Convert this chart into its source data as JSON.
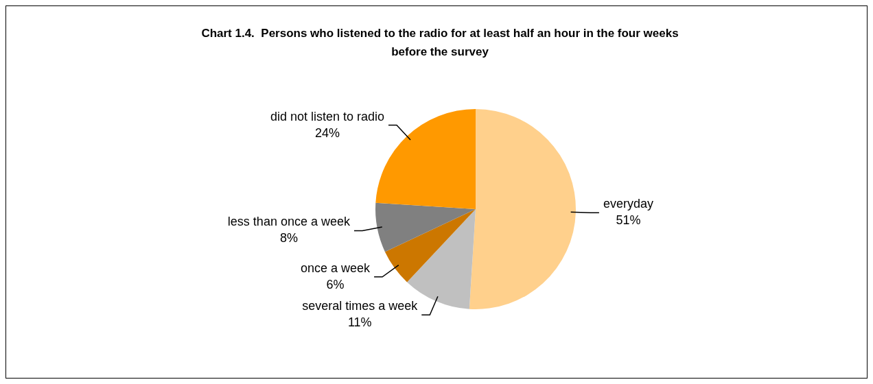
{
  "chart_data": {
    "type": "pie",
    "title": "Chart 1.4.  Persons who listened to the radio for at least half an hour in the four weeks before the survey",
    "categories": [
      "everyday",
      "several times a week",
      "once a week",
      "less than once a week",
      "did not listen to radio"
    ],
    "values": [
      51,
      11,
      6,
      8,
      24
    ],
    "value_labels": [
      "51%",
      "11%",
      "6%",
      "8%",
      "24%"
    ],
    "colors": [
      "#ffd08c",
      "#c0c0c0",
      "#cc7700",
      "#808080",
      "#ff9900"
    ],
    "legend": false
  }
}
